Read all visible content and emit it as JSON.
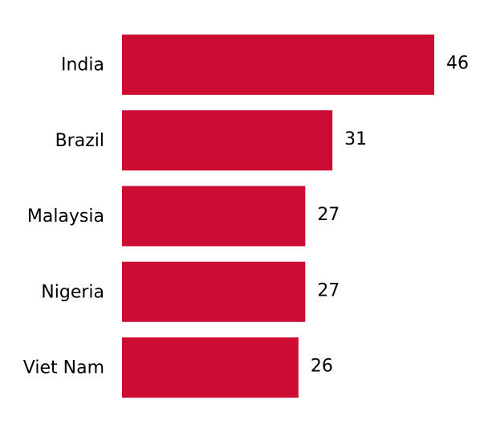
{
  "chart_data": {
    "type": "barh",
    "categories": [
      "India",
      "Brazil",
      "Malaysia",
      "Nigeria",
      "Viet Nam"
    ],
    "values": [
      46,
      31,
      27,
      27,
      26
    ],
    "color": "#cc0c33"
  }
}
